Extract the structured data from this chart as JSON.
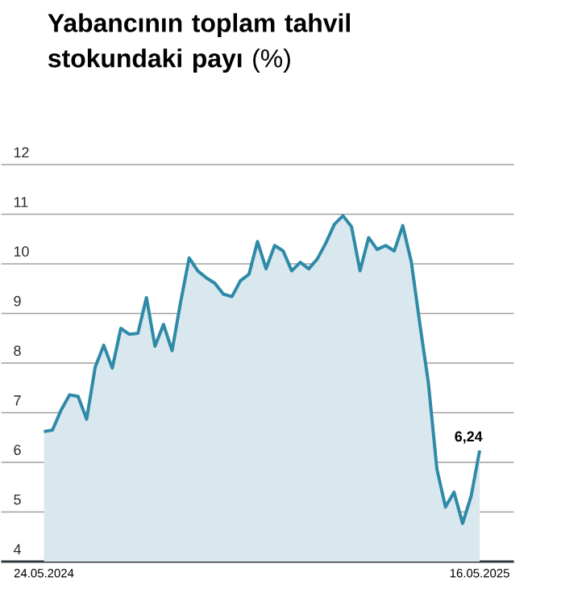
{
  "chart_data": {
    "type": "area",
    "title": "**Yabancının toplam tahvil stokundaki payı** (%)",
    "categories": [
      "24.05.2024",
      null,
      null,
      null,
      null,
      null,
      null,
      null,
      null,
      null,
      null,
      null,
      null,
      null,
      null,
      null,
      null,
      null,
      null,
      null,
      null,
      null,
      null,
      null,
      null,
      null,
      null,
      null,
      null,
      null,
      null,
      null,
      null,
      null,
      null,
      null,
      null,
      null,
      null,
      null,
      null,
      null,
      null,
      null,
      null,
      null,
      null,
      null,
      null,
      null,
      null,
      "16.05.2025"
    ],
    "series": [
      {
        "color": "#2e8aa6",
        "values": [
          6.62,
          6.65,
          7.05,
          7.36,
          7.33,
          6.87,
          7.92,
          8.36,
          7.9,
          8.7,
          8.58,
          8.6,
          9.32,
          8.34,
          8.78,
          8.25,
          9.23,
          10.12,
          9.86,
          9.72,
          9.61,
          9.39,
          9.34,
          9.66,
          9.79,
          10.45,
          9.9,
          10.37,
          10.26,
          9.86,
          10.03,
          9.9,
          10.1,
          10.42,
          10.8,
          10.97,
          10.75,
          9.86,
          10.53,
          10.29,
          10.37,
          10.26,
          10.77,
          10.04,
          8.79,
          7.6,
          5.86,
          5.1,
          5.4,
          4.77,
          5.32,
          6.24
        ],
        "value_labels": [
          null,
          null,
          null,
          null,
          null,
          null,
          null,
          null,
          null,
          null,
          null,
          null,
          null,
          null,
          null,
          null,
          null,
          null,
          null,
          null,
          null,
          null,
          null,
          null,
          null,
          null,
          null,
          null,
          null,
          null,
          null,
          null,
          null,
          null,
          null,
          null,
          null,
          null,
          null,
          null,
          null,
          null,
          null,
          null,
          null,
          null,
          null,
          null,
          null,
          null,
          null,
          "6,24"
        ]
      }
    ],
    "ylim": [
      4,
      12
    ],
    "yticks": [
      4,
      5,
      6,
      7,
      8,
      9,
      10,
      11,
      12
    ],
    "grid": "y"
  }
}
